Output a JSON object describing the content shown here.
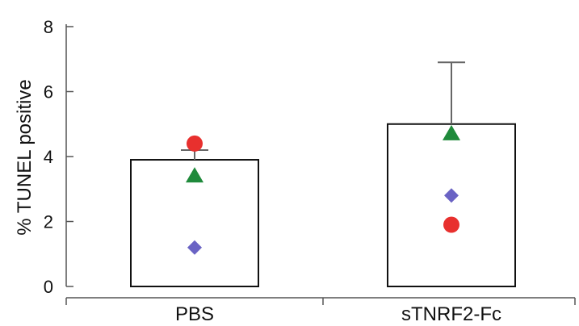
{
  "chart_data": {
    "type": "bar",
    "categories": [
      "PBS",
      "sTNRF2-Fc"
    ],
    "values": [
      3.9,
      5.0
    ],
    "error_upper": [
      4.2,
      6.9
    ],
    "ylabel": "% TUNEL positive",
    "ylim": [
      0,
      8
    ],
    "yticks": [
      "0",
      "2",
      "4",
      "6",
      "8"
    ],
    "grid": false,
    "legend": "none",
    "bar_fill": "#ffffff",
    "bar_stroke": "#111111",
    "error_color": "#666666",
    "markers": [
      {
        "shape": "circle",
        "color": "#e8302e",
        "values": [
          4.4,
          1.9
        ]
      },
      {
        "shape": "triangle",
        "color": "#1f8a3b",
        "values": [
          3.4,
          4.7
        ]
      },
      {
        "shape": "diamond",
        "color": "#6a63c4",
        "values": [
          1.2,
          2.8
        ]
      }
    ]
  }
}
